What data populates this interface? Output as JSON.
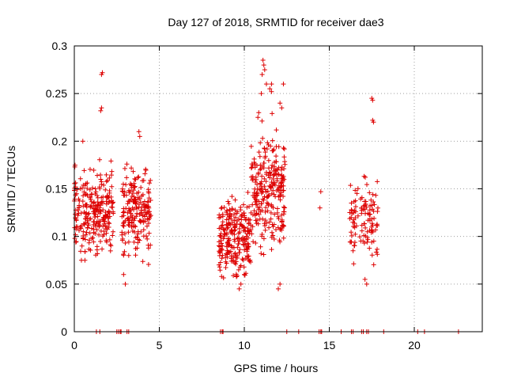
{
  "chart_data": {
    "type": "scatter",
    "title": "Day 127 of 2018, SRMTID for receiver dae3",
    "xlabel": "GPS time / hours",
    "ylabel": "SRMTID / TECUs",
    "xlim": [
      0,
      24
    ],
    "ylim": [
      0,
      0.3
    ],
    "xticks": [
      0,
      5,
      10,
      15,
      20
    ],
    "yticks": [
      0,
      0.05,
      0.1,
      0.15,
      0.2,
      0.25,
      0.3
    ],
    "grid": true,
    "marker": "+",
    "marker_color": "#dd0000",
    "series": [
      {
        "name": "SRMTID",
        "clusters": [
          {
            "x_range": [
              0.0,
              2.3
            ],
            "y_range": [
              0.075,
              0.21
            ],
            "y_center": 0.125,
            "count": 260
          },
          {
            "x_range": [
              2.8,
              4.5
            ],
            "y_range": [
              0.065,
              0.21
            ],
            "y_center": 0.125,
            "count": 190
          },
          {
            "x_range": [
              8.5,
              10.4
            ],
            "y_range": [
              0.045,
              0.165
            ],
            "y_center": 0.1,
            "count": 240
          },
          {
            "x_range": [
              10.4,
              12.4
            ],
            "y_range": [
              0.06,
              0.24
            ],
            "y_center": 0.15,
            "count": 260
          },
          {
            "x_range": [
              16.2,
              17.9
            ],
            "y_range": [
              0.05,
              0.175
            ],
            "y_center": 0.115,
            "count": 110
          }
        ],
        "points": [
          [
            1.6,
            0.27
          ],
          [
            1.65,
            0.272
          ],
          [
            1.6,
            0.235
          ],
          [
            1.55,
            0.232
          ],
          [
            0.5,
            0.2
          ],
          [
            3.8,
            0.21
          ],
          [
            3.85,
            0.205
          ],
          [
            3.0,
            0.05
          ],
          [
            2.9,
            0.06
          ],
          [
            3.2,
            0.08
          ],
          [
            11.1,
            0.285
          ],
          [
            11.15,
            0.28
          ],
          [
            11.2,
            0.275
          ],
          [
            11.05,
            0.27
          ],
          [
            11.3,
            0.26
          ],
          [
            11.0,
            0.25
          ],
          [
            11.6,
            0.26
          ],
          [
            11.5,
            0.255
          ],
          [
            11.6,
            0.252
          ],
          [
            12.3,
            0.26
          ],
          [
            12.1,
            0.24
          ],
          [
            12.2,
            0.235
          ],
          [
            10.8,
            0.225
          ],
          [
            10.85,
            0.23
          ],
          [
            12.1,
            0.05
          ],
          [
            12.0,
            0.045
          ],
          [
            9.7,
            0.045
          ],
          [
            9.8,
            0.05
          ],
          [
            10.0,
            0.06
          ],
          [
            14.5,
            0.147
          ],
          [
            14.45,
            0.13
          ],
          [
            17.5,
            0.245
          ],
          [
            17.55,
            0.243
          ],
          [
            17.55,
            0.222
          ],
          [
            17.6,
            0.22
          ],
          [
            16.3,
            0.135
          ],
          [
            16.3,
            0.128
          ],
          [
            17.1,
            0.055
          ],
          [
            17.2,
            0.05
          ]
        ],
        "zero_points": [
          1.3,
          1.5,
          2.5,
          2.6,
          2.7,
          2.75,
          3.1,
          3.2,
          8.6,
          8.7,
          8.75,
          12.5,
          13.2,
          14.4,
          14.5,
          14.55,
          15.7,
          16.3,
          16.4,
          16.9,
          17.0,
          17.2,
          17.3,
          18.2,
          20.2,
          20.6,
          22.6
        ]
      }
    ]
  }
}
